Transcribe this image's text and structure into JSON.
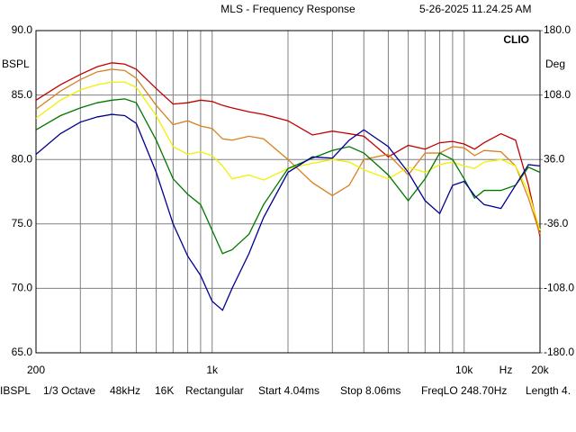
{
  "chart_data": {
    "type": "line",
    "title": "MLS - Frequency Response",
    "timestamp": "5-26-2025 11.24.25 AM",
    "brand": "CLIO",
    "ylabel": "BSPL",
    "y2label": "Deg",
    "xunit": "Hz",
    "footer": [
      "IBSPL",
      "1/3 Octave",
      "48kHz",
      "16K",
      "Rectangular",
      "Start 4.04ms",
      "Stop 8.06ms",
      "FreqLO 248.70Hz",
      "Length 4."
    ],
    "xscale": "log",
    "grid": true,
    "xlim": [
      200,
      20000
    ],
    "xticks": [
      200,
      {
        "value": 1000,
        "label": "1k"
      },
      {
        "value": 10000,
        "label": "10k"
      },
      {
        "value": 20000,
        "label": "20k"
      }
    ],
    "xminor": [
      300,
      400,
      500,
      600,
      700,
      800,
      900,
      2000,
      3000,
      4000,
      5000,
      6000,
      7000,
      8000,
      9000
    ],
    "ylim": [
      65,
      90
    ],
    "yticks": [
      {
        "value": 90,
        "label": "90.0"
      },
      {
        "value": 85,
        "label": "85.0"
      },
      {
        "value": 80,
        "label": "80.0"
      },
      {
        "value": 75,
        "label": "75.0"
      },
      {
        "value": 70,
        "label": "70.0"
      },
      {
        "value": 65,
        "label": "65.0"
      }
    ],
    "y2lim": [
      -180,
      180
    ],
    "y2ticks": [
      {
        "value": 180,
        "label": "180.0"
      },
      {
        "value": 108,
        "label": "108.0"
      },
      {
        "value": 36,
        "label": "36.0"
      },
      {
        "value": -36,
        "label": "-36.0"
      },
      {
        "value": -108,
        "label": "-108.0"
      },
      {
        "value": -180,
        "label": "-180.0"
      }
    ],
    "x": [
      200,
      250,
      300,
      350,
      400,
      450,
      500,
      600,
      700,
      800,
      900,
      1000,
      1100,
      1200,
      1400,
      1600,
      2000,
      2500,
      3000,
      3500,
      4000,
      5000,
      6000,
      7000,
      8000,
      9000,
      10000,
      11000,
      12000,
      14000,
      16000,
      18000,
      20000
    ],
    "series": [
      {
        "color": "#c00000",
        "values": [
          84.6,
          85.8,
          86.6,
          87.2,
          87.5,
          87.4,
          87.0,
          85.5,
          84.3,
          84.4,
          84.6,
          84.5,
          84.2,
          84.0,
          83.7,
          83.5,
          83.0,
          81.9,
          82.2,
          82.0,
          81.8,
          80.2,
          81.1,
          80.8,
          81.3,
          81.4,
          81.2,
          80.8,
          81.3,
          82.0,
          81.5,
          78.0,
          74.0
        ]
      },
      {
        "color": "#d88020",
        "values": [
          83.9,
          85.3,
          86.2,
          86.8,
          87.0,
          86.9,
          86.3,
          84.2,
          82.7,
          83.0,
          82.6,
          82.4,
          81.6,
          81.5,
          81.8,
          81.6,
          80.0,
          78.2,
          77.2,
          78.0,
          80.0,
          80.4,
          78.8,
          80.5,
          80.5,
          81.0,
          80.9,
          80.3,
          80.7,
          80.6,
          79.5,
          77.0,
          74.2
        ]
      },
      {
        "color": "#f0f000",
        "values": [
          83.2,
          84.6,
          85.4,
          85.8,
          86.0,
          86.0,
          85.6,
          83.4,
          81.0,
          80.4,
          80.6,
          80.3,
          79.5,
          78.5,
          78.8,
          78.4,
          79.3,
          79.7,
          80.0,
          79.8,
          79.2,
          78.5,
          79.4,
          79.0,
          79.6,
          79.8,
          79.5,
          79.3,
          79.8,
          80.0,
          79.5,
          77.5,
          74.5
        ]
      },
      {
        "color": "#007800",
        "values": [
          82.3,
          83.4,
          84.0,
          84.4,
          84.6,
          84.7,
          84.4,
          81.5,
          78.5,
          77.3,
          76.5,
          74.5,
          72.7,
          73.0,
          74.2,
          76.5,
          79.3,
          80.1,
          80.7,
          81.0,
          80.5,
          78.8,
          76.8,
          78.5,
          80.5,
          80.0,
          78.5,
          77.0,
          77.6,
          77.6,
          78.0,
          79.4,
          79.0
        ]
      },
      {
        "color": "#000090",
        "values": [
          80.4,
          82.0,
          82.9,
          83.3,
          83.5,
          83.4,
          82.8,
          79.0,
          75.0,
          72.5,
          71.0,
          69.0,
          68.3,
          70.0,
          72.7,
          75.5,
          79.0,
          80.2,
          80.1,
          81.5,
          82.3,
          81.0,
          79.0,
          76.8,
          75.8,
          78.0,
          78.3,
          77.2,
          76.5,
          76.2,
          78.0,
          79.6,
          79.5
        ]
      }
    ]
  }
}
